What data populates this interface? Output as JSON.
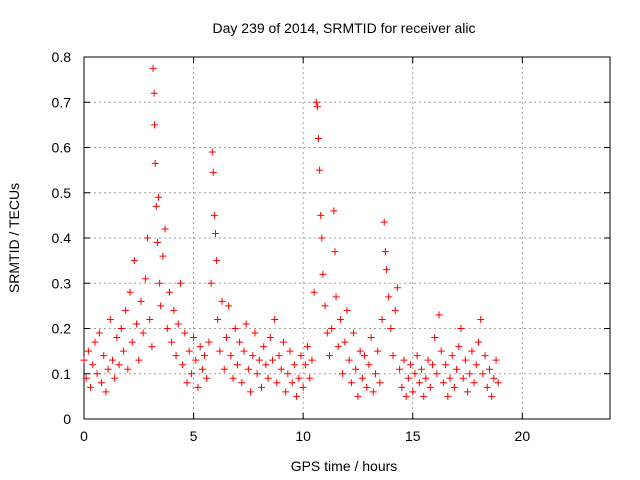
{
  "chart_data": {
    "type": "scatter",
    "title": "Day 239 of 2014, SRMTID for receiver alic",
    "xlabel": "GPS time / hours",
    "ylabel": "SRMTID / TECUs",
    "xlim": [
      0,
      24
    ],
    "ylim": [
      0,
      0.8
    ],
    "x_ticks": [
      "0",
      "5",
      "10",
      "15",
      "20"
    ],
    "y_ticks": [
      "0",
      "0.1",
      "0.2",
      "0.3",
      "0.4",
      "0.5",
      "0.6",
      "0.7",
      "0.8"
    ],
    "grid": true,
    "marker": "+",
    "color": "#ff0000",
    "series": [
      {
        "name": "SRMTID",
        "points": [
          [
            0.0,
            0.13
          ],
          [
            0.1,
            0.09
          ],
          [
            0.2,
            0.15
          ],
          [
            0.3,
            0.07
          ],
          [
            0.4,
            0.12
          ],
          [
            0.5,
            0.17
          ],
          [
            0.6,
            0.1
          ],
          [
            0.7,
            0.19
          ],
          [
            0.8,
            0.08
          ],
          [
            0.9,
            0.14
          ],
          [
            1.0,
            0.06
          ],
          [
            1.1,
            0.11
          ],
          [
            1.2,
            0.22
          ],
          [
            1.3,
            0.13
          ],
          [
            1.4,
            0.09
          ],
          [
            1.5,
            0.18
          ],
          [
            1.6,
            0.12
          ],
          [
            1.7,
            0.2
          ],
          [
            1.8,
            0.15
          ],
          [
            1.9,
            0.24
          ],
          [
            2.0,
            0.11
          ],
          [
            2.1,
            0.28
          ],
          [
            2.2,
            0.17
          ],
          [
            2.3,
            0.35
          ],
          [
            2.4,
            0.21
          ],
          [
            2.5,
            0.13
          ],
          [
            2.6,
            0.26
          ],
          [
            2.7,
            0.19
          ],
          [
            2.8,
            0.31
          ],
          [
            2.9,
            0.4
          ],
          [
            3.0,
            0.22
          ],
          [
            3.1,
            0.16
          ],
          [
            3.15,
            0.775
          ],
          [
            3.2,
            0.72
          ],
          [
            3.22,
            0.65
          ],
          [
            3.25,
            0.565
          ],
          [
            3.3,
            0.47
          ],
          [
            3.35,
            0.39
          ],
          [
            3.4,
            0.49
          ],
          [
            3.45,
            0.3
          ],
          [
            3.5,
            0.25
          ],
          [
            3.6,
            0.36
          ],
          [
            3.7,
            0.42
          ],
          [
            3.8,
            0.2
          ],
          [
            3.9,
            0.28
          ],
          [
            4.0,
            0.17
          ],
          [
            4.1,
            0.24
          ],
          [
            4.2,
            0.14
          ],
          [
            4.3,
            0.21
          ],
          [
            4.4,
            0.3
          ],
          [
            4.5,
            0.12
          ],
          [
            4.6,
            0.19
          ],
          [
            4.7,
            0.08
          ],
          [
            4.8,
            0.15
          ],
          [
            4.9,
            0.1
          ],
          [
            5.0,
            0.18
          ],
          [
            5.1,
            0.13
          ],
          [
            5.2,
            0.07
          ],
          [
            5.3,
            0.16
          ],
          [
            5.4,
            0.11
          ],
          [
            5.5,
            0.14
          ],
          [
            5.6,
            0.09
          ],
          [
            5.7,
            0.17
          ],
          [
            5.8,
            0.3
          ],
          [
            5.85,
            0.59
          ],
          [
            5.9,
            0.545
          ],
          [
            5.95,
            0.45
          ],
          [
            6.0,
            0.41
          ],
          [
            6.05,
            0.35
          ],
          [
            6.1,
            0.22
          ],
          [
            6.2,
            0.15
          ],
          [
            6.3,
            0.26
          ],
          [
            6.4,
            0.11
          ],
          [
            6.5,
            0.18
          ],
          [
            6.6,
            0.25
          ],
          [
            6.7,
            0.14
          ],
          [
            6.8,
            0.09
          ],
          [
            6.9,
            0.2
          ],
          [
            7.0,
            0.12
          ],
          [
            7.1,
            0.17
          ],
          [
            7.2,
            0.08
          ],
          [
            7.3,
            0.15
          ],
          [
            7.4,
            0.21
          ],
          [
            7.5,
            0.11
          ],
          [
            7.6,
            0.06
          ],
          [
            7.7,
            0.14
          ],
          [
            7.8,
            0.19
          ],
          [
            7.9,
            0.1
          ],
          [
            8.0,
            0.13
          ],
          [
            8.1,
            0.07
          ],
          [
            8.2,
            0.16
          ],
          [
            8.3,
            0.12
          ],
          [
            8.4,
            0.09
          ],
          [
            8.5,
            0.18
          ],
          [
            8.6,
            0.13
          ],
          [
            8.7,
            0.22
          ],
          [
            8.8,
            0.08
          ],
          [
            8.9,
            0.14
          ],
          [
            9.0,
            0.11
          ],
          [
            9.1,
            0.17
          ],
          [
            9.2,
            0.06
          ],
          [
            9.3,
            0.1
          ],
          [
            9.4,
            0.15
          ],
          [
            9.5,
            0.08
          ],
          [
            9.6,
            0.12
          ],
          [
            9.7,
            0.05
          ],
          [
            9.8,
            0.09
          ],
          [
            9.9,
            0.14
          ],
          [
            10.0,
            0.07
          ],
          [
            10.1,
            0.12
          ],
          [
            10.2,
            0.16
          ],
          [
            10.3,
            0.09
          ],
          [
            10.4,
            0.13
          ],
          [
            10.5,
            0.28
          ],
          [
            10.6,
            0.7
          ],
          [
            10.65,
            0.69
          ],
          [
            10.7,
            0.62
          ],
          [
            10.75,
            0.55
          ],
          [
            10.8,
            0.45
          ],
          [
            10.85,
            0.4
          ],
          [
            10.9,
            0.32
          ],
          [
            11.0,
            0.25
          ],
          [
            11.1,
            0.19
          ],
          [
            11.2,
            0.14
          ],
          [
            11.3,
            0.2
          ],
          [
            11.4,
            0.46
          ],
          [
            11.45,
            0.37
          ],
          [
            11.5,
            0.27
          ],
          [
            11.6,
            0.16
          ],
          [
            11.7,
            0.22
          ],
          [
            11.8,
            0.1
          ],
          [
            11.9,
            0.17
          ],
          [
            12.0,
            0.24
          ],
          [
            12.1,
            0.13
          ],
          [
            12.2,
            0.08
          ],
          [
            12.3,
            0.19
          ],
          [
            12.4,
            0.11
          ],
          [
            12.5,
            0.05
          ],
          [
            12.6,
            0.15
          ],
          [
            12.7,
            0.09
          ],
          [
            12.8,
            0.14
          ],
          [
            12.9,
            0.07
          ],
          [
            13.0,
            0.12
          ],
          [
            13.1,
            0.18
          ],
          [
            13.2,
            0.06
          ],
          [
            13.3,
            0.1
          ],
          [
            13.4,
            0.15
          ],
          [
            13.5,
            0.08
          ],
          [
            13.6,
            0.22
          ],
          [
            13.7,
            0.435
          ],
          [
            13.75,
            0.37
          ],
          [
            13.8,
            0.33
          ],
          [
            13.9,
            0.27
          ],
          [
            14.0,
            0.2
          ],
          [
            14.1,
            0.14
          ],
          [
            14.2,
            0.24
          ],
          [
            14.3,
            0.29
          ],
          [
            14.4,
            0.11
          ],
          [
            14.5,
            0.07
          ],
          [
            14.6,
            0.13
          ],
          [
            14.7,
            0.05
          ],
          [
            14.8,
            0.09
          ],
          [
            14.9,
            0.12
          ],
          [
            15.0,
            0.06
          ],
          [
            15.1,
            0.1
          ],
          [
            15.2,
            0.14
          ],
          [
            15.3,
            0.08
          ],
          [
            15.4,
            0.11
          ],
          [
            15.5,
            0.05
          ],
          [
            15.6,
            0.09
          ],
          [
            15.7,
            0.13
          ],
          [
            15.8,
            0.07
          ],
          [
            15.9,
            0.12
          ],
          [
            16.0,
            0.18
          ],
          [
            16.1,
            0.1
          ],
          [
            16.2,
            0.23
          ],
          [
            16.3,
            0.15
          ],
          [
            16.4,
            0.08
          ],
          [
            16.5,
            0.12
          ],
          [
            16.6,
            0.05
          ],
          [
            16.7,
            0.09
          ],
          [
            16.8,
            0.14
          ],
          [
            16.9,
            0.07
          ],
          [
            17.0,
            0.11
          ],
          [
            17.1,
            0.16
          ],
          [
            17.2,
            0.2
          ],
          [
            17.3,
            0.09
          ],
          [
            17.4,
            0.13
          ],
          [
            17.5,
            0.06
          ],
          [
            17.6,
            0.1
          ],
          [
            17.7,
            0.15
          ],
          [
            17.8,
            0.08
          ],
          [
            17.9,
            0.12
          ],
          [
            18.0,
            0.17
          ],
          [
            18.1,
            0.22
          ],
          [
            18.2,
            0.1
          ],
          [
            18.3,
            0.14
          ],
          [
            18.4,
            0.07
          ],
          [
            18.5,
            0.11
          ],
          [
            18.6,
            0.05
          ],
          [
            18.7,
            0.09
          ],
          [
            18.8,
            0.13
          ],
          [
            18.9,
            0.08
          ]
        ]
      }
    ]
  }
}
